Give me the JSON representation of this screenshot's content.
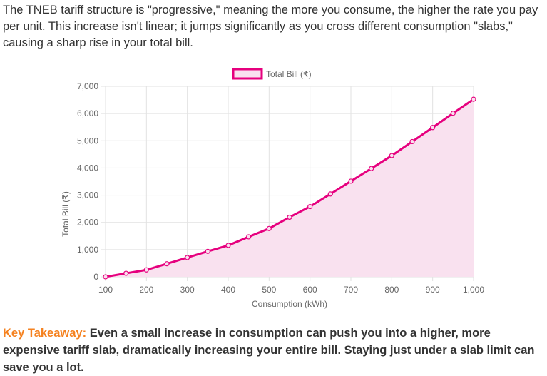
{
  "intro": "The TNEB tariff structure is \"progressive,\" meaning the more you consume, the higher the rate you pay per unit. This increase isn't linear; it jumps significantly as you cross different consumption \"slabs,\" causing a sharp rise in your total bill.",
  "takeaway": {
    "label": "Key Takeaway:",
    "text": " Even a small increase in consumption can push you into a higher, more expensive tariff slab, dramatically increasing your entire bill. Staying just under a slab limit can save you a lot."
  },
  "colors": {
    "line": "#e6007e",
    "fill": "#f9e1ef",
    "accent": "#f58220"
  },
  "chart_data": {
    "type": "area",
    "xlabel": "Consumption (kWh)",
    "ylabel": "Total Bill (₹)",
    "x": [
      100,
      150,
      200,
      250,
      300,
      350,
      400,
      450,
      500,
      550,
      600,
      650,
      700,
      750,
      800,
      850,
      900,
      950,
      1000
    ],
    "series": [
      {
        "name": "Total Bill (₹)",
        "values": [
          0,
          130,
          255,
          480,
          710,
          935,
          1155,
          1470,
          1775,
          2190,
          2580,
          3045,
          3515,
          3980,
          4455,
          4970,
          5485,
          6010,
          6525
        ]
      }
    ],
    "xlim": [
      100,
      1000
    ],
    "ylim": [
      0,
      7000
    ],
    "xticks": [
      "100",
      "200",
      "300",
      "400",
      "500",
      "600",
      "700",
      "800",
      "900",
      "1,000"
    ],
    "yticks": [
      "0",
      "1,000",
      "2,000",
      "3,000",
      "4,000",
      "5,000",
      "6,000",
      "7,000"
    ],
    "grid": true,
    "legend": "top"
  }
}
